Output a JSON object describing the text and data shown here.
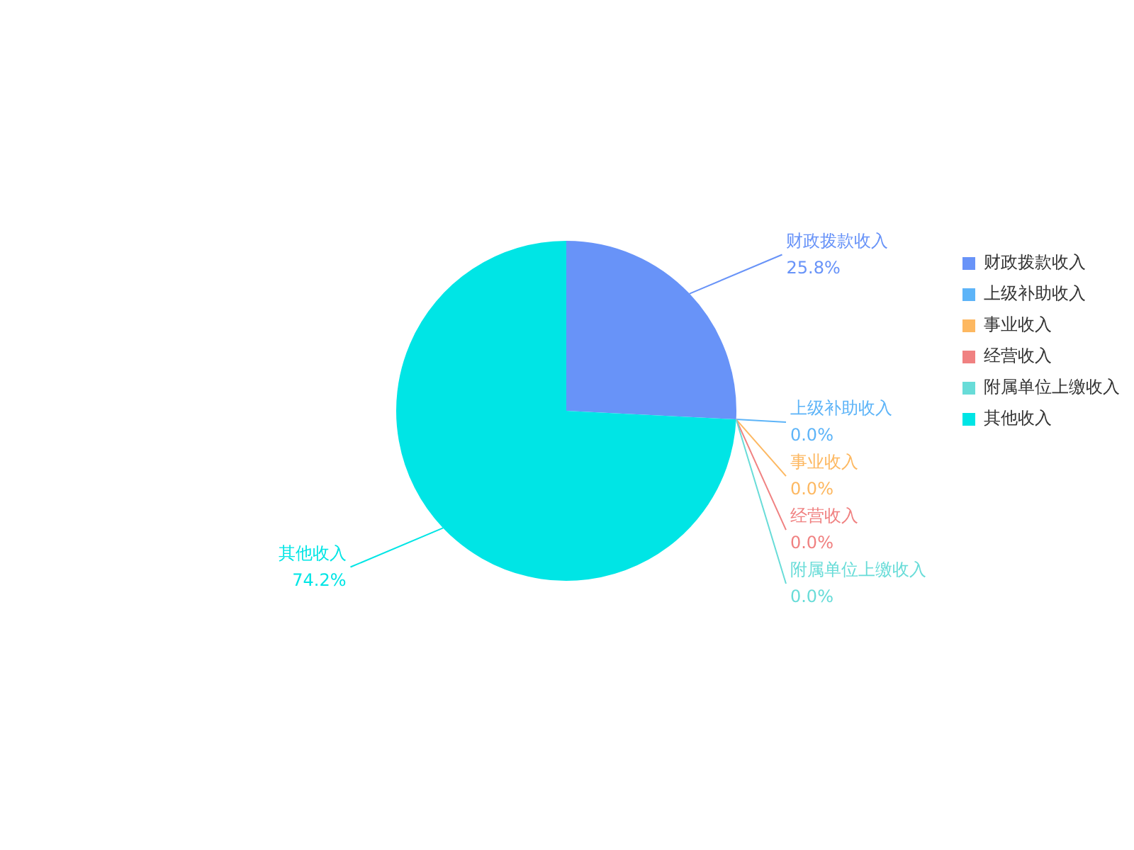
{
  "chart_data": {
    "type": "pie",
    "categories": [
      "财政拨款收入",
      "上级补助收入",
      "事业收入",
      "经营收入",
      "附属单位上缴收入",
      "其他收入"
    ],
    "values": [
      25.8,
      0,
      0,
      0,
      0,
      74.2
    ],
    "value_labels": [
      "25.8%",
      "0.0%",
      "0.0%",
      "0.0%",
      "0.0%",
      "74.2%"
    ],
    "colors": [
      "#6893f8",
      "#5db4f8",
      "#fdb861",
      "#f08181",
      "#68dcd8",
      "#00e5e5"
    ],
    "legend": "top right"
  }
}
